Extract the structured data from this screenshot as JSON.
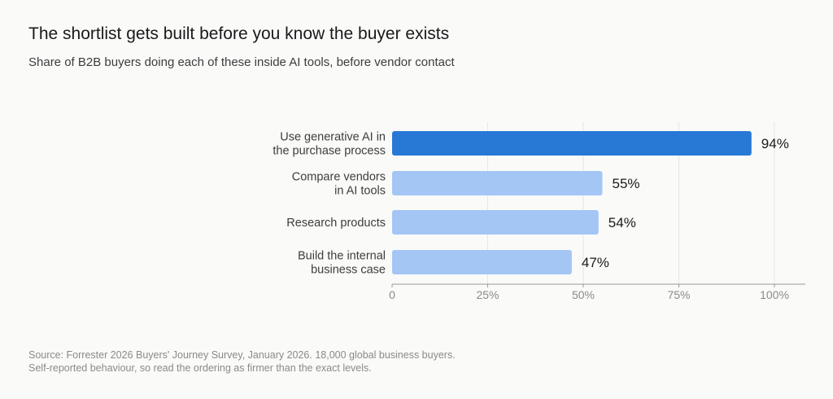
{
  "header": {
    "title": "The shortlist gets built before you know the buyer exists",
    "subtitle": "Share of B2B buyers doing each of these inside AI tools, before vendor contact"
  },
  "chart_data": {
    "type": "bar",
    "orientation": "horizontal",
    "categories": [
      [
        "Use generative AI in",
        "the purchase process"
      ],
      [
        "Compare vendors",
        "in AI tools"
      ],
      [
        "Research products"
      ],
      [
        "Build the internal",
        "business case"
      ]
    ],
    "values": [
      94,
      55,
      54,
      47
    ],
    "value_labels": [
      "94%",
      "55%",
      "54%",
      "47%"
    ],
    "xlim": [
      0,
      100
    ],
    "x_ticks": [
      0,
      25,
      50,
      75,
      100
    ],
    "x_tick_labels": [
      "0",
      "25%",
      "50%",
      "75%",
      "100%"
    ],
    "grid": true,
    "colors": {
      "highlight": "#2878d6",
      "default": "#a3c6f5",
      "grid": "#e6e6e6",
      "axis": "#9a9a9a",
      "tick_text": "#8a8a8a",
      "category_text": "#3d3d3d",
      "value_text": "#1a1a1a"
    },
    "highlight_index": 0
  },
  "footer": {
    "source_line1": "Source: Forrester 2026 Buyers' Journey Survey, January 2026. 18,000 global business buyers.",
    "source_line2": "Self-reported behaviour, so read the ordering as firmer than the exact levels."
  }
}
